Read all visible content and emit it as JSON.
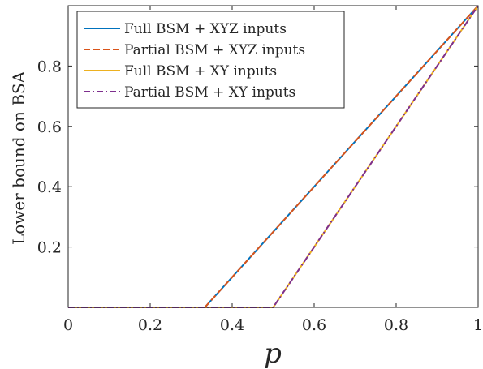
{
  "chart_data": {
    "type": "line",
    "xlabel": "p",
    "ylabel": "Lower bound on BSA",
    "xlim": [
      0,
      1
    ],
    "ylim": [
      0,
      1
    ],
    "x_ticks": [
      0,
      0.2,
      0.4,
      0.6,
      0.8,
      1
    ],
    "y_ticks": [
      0.2,
      0.4,
      0.6,
      0.8
    ],
    "x_tick_labels": [
      "0",
      "0.2",
      "0.4",
      "0.6",
      "0.8",
      "1"
    ],
    "y_tick_labels": [
      "0.2",
      "0.4",
      "0.6",
      "0.8"
    ],
    "grid": false,
    "legend_position": "top-left",
    "series": [
      {
        "name": "Full BSM + XYZ inputs",
        "color": "#0072BD",
        "style": "solid",
        "x": [
          0,
          0.3333,
          1
        ],
        "y": [
          0,
          0,
          1
        ]
      },
      {
        "name": "Partial BSM + XYZ inputs",
        "color": "#D95319",
        "style": "dashed",
        "x": [
          0,
          0.3333,
          1
        ],
        "y": [
          0,
          0,
          1
        ]
      },
      {
        "name": "Full BSM + XY inputs",
        "color": "#EDB120",
        "style": "solid",
        "x": [
          0,
          0.5,
          1
        ],
        "y": [
          0,
          0,
          1
        ]
      },
      {
        "name": "Partial BSM + XY inputs",
        "color": "#7E2F8E",
        "style": "dashdot",
        "x": [
          0,
          0.5,
          1
        ],
        "y": [
          0,
          0,
          1
        ]
      }
    ]
  }
}
